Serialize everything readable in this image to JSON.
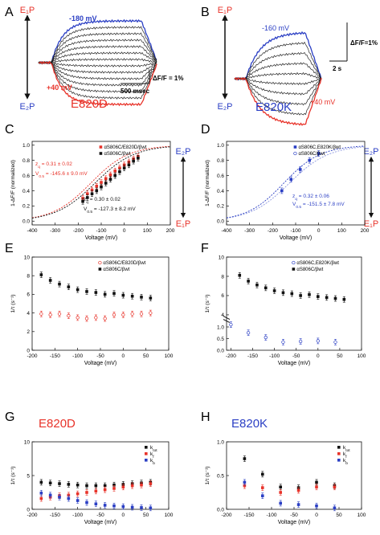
{
  "colors": {
    "red": "#e8332a",
    "blue": "#2b3fc4",
    "black": "#111111",
    "gray": "#8a8a8a"
  },
  "panels": {
    "A": {
      "letter": "A",
      "top": "E₁P",
      "bottom": "E₂P",
      "neg": "-180 mV",
      "pos": "+40 mV",
      "mutant": "E820D",
      "dff": "ΔF/F = 1%",
      "time": "500 msec"
    },
    "B": {
      "letter": "B",
      "top": "E₁P",
      "bottom": "E₂P",
      "neg": "-160 mV",
      "pos": "+40 mV",
      "mutant": "E820K",
      "dff": "ΔF/F=1%",
      "time": "2 s"
    },
    "C": {
      "letter": "C",
      "top": "E₂P",
      "bottom": "E₁P"
    },
    "D": {
      "letter": "D",
      "top": "E₂P",
      "bottom": "E₁P"
    },
    "E": {
      "letter": "E"
    },
    "F": {
      "letter": "F"
    },
    "G": {
      "letter": "G",
      "title": "E820D"
    },
    "H": {
      "letter": "H",
      "title": "E820K"
    }
  },
  "chart_data": [
    {
      "panel": "C",
      "type": "scatter",
      "xlabel": "Voltage (mV)",
      "ylabel": "1-ΔF/F (normalized)",
      "xlim": [
        -400,
        200
      ],
      "ylim": [
        -0.05,
        1.05
      ],
      "xticks": [
        -400,
        -300,
        -200,
        -100,
        0,
        100,
        200
      ],
      "yticks": [
        0.0,
        0.2,
        0.4,
        0.6,
        0.8,
        1.0
      ],
      "legend": [
        "αS806C/E820D/βwt",
        "αS806C/βwt"
      ],
      "annotations": [
        {
          "text": "z_q = 0.31 ± 0.02",
          "color": "red"
        },
        {
          "text": "V_0.5 = -145.6 ± 9.0 mV",
          "color": "red"
        },
        {
          "text": "z_q = 0.30 ± 0.02",
          "color": "black"
        },
        {
          "text": "V_0.5 = -127.3 ± 8.2 mV",
          "color": "black"
        }
      ],
      "series": [
        {
          "name": "αS806C/E820D/βwt",
          "color": "red",
          "x": [
            -180,
            -160,
            -140,
            -120,
            -100,
            -80,
            -60,
            -40,
            -20,
            0,
            20,
            40,
            60
          ],
          "y": [
            0.3,
            0.36,
            0.41,
            0.46,
            0.51,
            0.56,
            0.61,
            0.66,
            0.7,
            0.74,
            0.78,
            0.82,
            0.85
          ]
        },
        {
          "name": "αS806C/βwt",
          "color": "black",
          "x": [
            -180,
            -160,
            -140,
            -120,
            -100,
            -80,
            -60,
            -40,
            -20,
            0,
            20,
            40,
            60
          ],
          "y": [
            0.26,
            0.31,
            0.36,
            0.4,
            0.45,
            0.5,
            0.55,
            0.6,
            0.65,
            0.7,
            0.74,
            0.79,
            0.83
          ]
        }
      ]
    },
    {
      "panel": "D",
      "type": "scatter",
      "xlabel": "Voltage (mV)",
      "ylabel": "1-ΔF/F (normalized)",
      "xlim": [
        -400,
        200
      ],
      "ylim": [
        -0.05,
        1.05
      ],
      "xticks": [
        -400,
        -300,
        -200,
        -100,
        0,
        100,
        200
      ],
      "yticks": [
        0.0,
        0.2,
        0.4,
        0.6,
        0.8,
        1.0
      ],
      "legend": [
        "αS806C,E820K/βwt",
        "αS806C/βwt"
      ],
      "annotations": [
        {
          "text": "z_q = 0.32 ± 0.06",
          "color": "blue"
        },
        {
          "text": "V_0.5 = -151.5 ± 7.8 mV",
          "color": "blue"
        }
      ],
      "series": [
        {
          "name": "αS806C,E820K/βwt",
          "color": "blue",
          "x": [
            -160,
            -120,
            -80,
            -40,
            0
          ],
          "y": [
            0.4,
            0.55,
            0.68,
            0.8,
            0.89
          ]
        }
      ]
    },
    {
      "panel": "E",
      "type": "scatter",
      "xlabel": "Voltage (mV)",
      "ylabel": "1/τ (s⁻¹)",
      "xlim": [
        -200,
        100
      ],
      "ylim": [
        0,
        10
      ],
      "xticks": [
        -200,
        -150,
        -100,
        -50,
        0,
        50,
        100
      ],
      "yticks": [
        0,
        2,
        4,
        6,
        8,
        10
      ],
      "legend": [
        "αS806C/E820D/βwt",
        "αS806C/βwt"
      ],
      "series": [
        {
          "name": "αS806C/E820D/βwt",
          "color": "red",
          "open": true,
          "x": [
            -180,
            -160,
            -140,
            -120,
            -100,
            -80,
            -60,
            -40,
            -20,
            0,
            20,
            40,
            60
          ],
          "y": [
            3.9,
            3.8,
            3.9,
            3.7,
            3.5,
            3.4,
            3.5,
            3.4,
            3.8,
            3.8,
            3.9,
            3.9,
            4.0
          ]
        },
        {
          "name": "αS806C/βwt",
          "color": "black",
          "x": [
            -180,
            -160,
            -140,
            -120,
            -100,
            -80,
            -60,
            -40,
            -20,
            0,
            20,
            40,
            60
          ],
          "y": [
            8.1,
            7.5,
            7.1,
            6.8,
            6.5,
            6.3,
            6.2,
            6.0,
            6.1,
            5.9,
            5.8,
            5.7,
            5.6
          ]
        }
      ]
    },
    {
      "panel": "F",
      "type": "scatter",
      "xlabel": "Voltage (mV)",
      "ylabel": "1/τ (s⁻¹)",
      "xlim": [
        -210,
        100
      ],
      "xticks": [
        -200,
        -150,
        -100,
        -50,
        0,
        50,
        100
      ],
      "yticks_upper": [
        4,
        6,
        8,
        10
      ],
      "yticks_lower": [
        0.0,
        0.5,
        1.0
      ],
      "legend": [
        "αS806C,E820K/βwt",
        "αS806C/βwt"
      ],
      "series": [
        {
          "name": "αS806C,E820K/βwt",
          "color": "blue",
          "open": true,
          "x": [
            -200,
            -160,
            -120,
            -80,
            -40,
            0,
            40
          ],
          "y": [
            1.1,
            0.75,
            0.55,
            0.35,
            0.38,
            0.4,
            0.35
          ]
        },
        {
          "name": "αS806C/βwt",
          "color": "black",
          "x": [
            -180,
            -160,
            -140,
            -120,
            -100,
            -80,
            -60,
            -40,
            -20,
            0,
            20,
            40,
            60
          ],
          "y": [
            8.1,
            7.5,
            7.1,
            6.8,
            6.5,
            6.3,
            6.2,
            6.0,
            6.1,
            5.9,
            5.8,
            5.7,
            5.6
          ]
        }
      ]
    },
    {
      "panel": "G",
      "type": "scatter",
      "xlabel": "Voltage (mV)",
      "ylabel": "1/τ (s⁻¹)",
      "xlim": [
        -200,
        100
      ],
      "ylim": [
        0,
        10
      ],
      "xticks": [
        -200,
        -150,
        -100,
        -50,
        0,
        50,
        100
      ],
      "yticks": [
        0,
        5,
        10
      ],
      "legend": [
        "k_tot",
        "k_f",
        "k_b"
      ],
      "series": [
        {
          "name": "k_tot",
          "color": "black",
          "x": [
            -180,
            -160,
            -140,
            -120,
            -100,
            -80,
            -60,
            -40,
            -20,
            0,
            20,
            40,
            60
          ],
          "y": [
            4.0,
            3.9,
            3.8,
            3.7,
            3.6,
            3.5,
            3.5,
            3.5,
            3.6,
            3.7,
            3.8,
            3.9,
            4.0
          ]
        },
        {
          "name": "k_f",
          "color": "red",
          "x": [
            -180,
            -160,
            -140,
            -120,
            -100,
            -80,
            -60,
            -40,
            -20,
            0,
            20,
            40,
            60
          ],
          "y": [
            1.6,
            1.8,
            2.0,
            2.1,
            2.3,
            2.5,
            2.7,
            2.9,
            3.1,
            3.3,
            3.5,
            3.6,
            3.8
          ]
        },
        {
          "name": "k_b",
          "color": "blue",
          "x": [
            -180,
            -160,
            -140,
            -120,
            -100,
            -80,
            -60,
            -40,
            -20,
            0,
            20,
            40,
            60
          ],
          "y": [
            2.4,
            2.1,
            1.8,
            1.6,
            1.3,
            1.0,
            0.8,
            0.6,
            0.5,
            0.4,
            0.3,
            0.25,
            0.2
          ]
        }
      ]
    },
    {
      "panel": "H",
      "type": "scatter",
      "xlabel": "Voltage (mV)",
      "ylabel": "1/τ (s⁻¹)",
      "xlim": [
        -200,
        100
      ],
      "ylim": [
        0,
        1.0
      ],
      "xticks": [
        -200,
        -150,
        -100,
        -50,
        0,
        50,
        100
      ],
      "yticks": [
        0.0,
        0.5,
        1.0
      ],
      "legend": [
        "k_tot",
        "k_f",
        "k_b"
      ],
      "series": [
        {
          "name": "k_tot",
          "color": "black",
          "x": [
            -160,
            -120,
            -80,
            -40,
            0,
            40
          ],
          "y": [
            0.75,
            0.52,
            0.33,
            0.32,
            0.4,
            0.35
          ]
        },
        {
          "name": "k_f",
          "color": "red",
          "x": [
            -160,
            -120,
            -80,
            -40,
            0,
            40
          ],
          "y": [
            0.35,
            0.32,
            0.25,
            0.28,
            0.33,
            0.33
          ]
        },
        {
          "name": "k_b",
          "color": "blue",
          "x": [
            -160,
            -120,
            -80,
            -40,
            0,
            40
          ],
          "y": [
            0.4,
            0.2,
            0.09,
            0.07,
            0.05,
            0.02
          ]
        }
      ]
    }
  ]
}
